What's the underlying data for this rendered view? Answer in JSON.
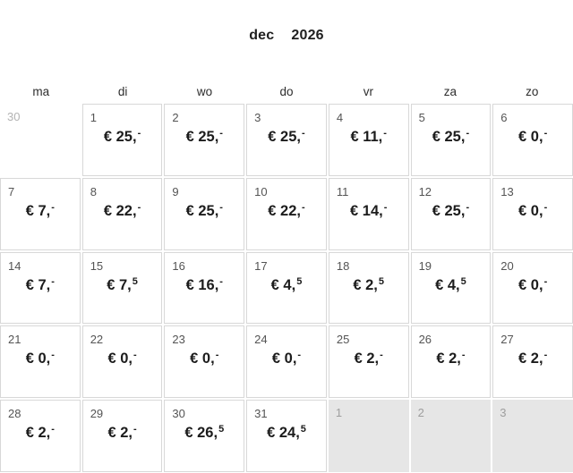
{
  "header": {
    "month": "dec",
    "year": "2026"
  },
  "weekday_labels": [
    "ma",
    "di",
    "wo",
    "do",
    "vr",
    "za",
    "zo"
  ],
  "colors": {
    "cell_border": "#d8d8d8",
    "next_month_cell_bg": "#e6e6e6",
    "price_text": "#1c1c1c",
    "day_number": "#545454",
    "prev_month_day_number": "#b3b3b3",
    "next_month_day_number": "#9e9e9e"
  },
  "weeks": [
    [
      {
        "day": "30",
        "variant": "prev-month"
      },
      {
        "day": "1",
        "price": {
          "main": "€ 25,",
          "sup": "-"
        }
      },
      {
        "day": "2",
        "price": {
          "main": "€ 25,",
          "sup": "-"
        }
      },
      {
        "day": "3",
        "price": {
          "main": "€ 25,",
          "sup": "-"
        }
      },
      {
        "day": "4",
        "price": {
          "main": "€ 11,",
          "sup": "-"
        }
      },
      {
        "day": "5",
        "price": {
          "main": "€ 25,",
          "sup": "-"
        }
      },
      {
        "day": "6",
        "price": {
          "main": "€ 0,",
          "sup": "-"
        }
      }
    ],
    [
      {
        "day": "7",
        "price": {
          "main": "€ 7,",
          "sup": "-"
        }
      },
      {
        "day": "8",
        "price": {
          "main": "€ 22,",
          "sup": "-"
        }
      },
      {
        "day": "9",
        "price": {
          "main": "€ 25,",
          "sup": "-"
        }
      },
      {
        "day": "10",
        "price": {
          "main": "€ 22,",
          "sup": "-"
        }
      },
      {
        "day": "11",
        "price": {
          "main": "€ 14,",
          "sup": "-"
        }
      },
      {
        "day": "12",
        "price": {
          "main": "€ 25,",
          "sup": "-"
        }
      },
      {
        "day": "13",
        "price": {
          "main": "€ 0,",
          "sup": "-"
        }
      }
    ],
    [
      {
        "day": "14",
        "price": {
          "main": "€ 7,",
          "sup": "-"
        }
      },
      {
        "day": "15",
        "price": {
          "main": "€ 7,",
          "sup": "5"
        }
      },
      {
        "day": "16",
        "price": {
          "main": "€ 16,",
          "sup": "-"
        }
      },
      {
        "day": "17",
        "price": {
          "main": "€ 4,",
          "sup": "5"
        }
      },
      {
        "day": "18",
        "price": {
          "main": "€ 2,",
          "sup": "5"
        }
      },
      {
        "day": "19",
        "price": {
          "main": "€ 4,",
          "sup": "5"
        }
      },
      {
        "day": "20",
        "price": {
          "main": "€ 0,",
          "sup": "-"
        }
      }
    ],
    [
      {
        "day": "21",
        "price": {
          "main": "€ 0,",
          "sup": "-"
        }
      },
      {
        "day": "22",
        "price": {
          "main": "€ 0,",
          "sup": "-"
        }
      },
      {
        "day": "23",
        "price": {
          "main": "€ 0,",
          "sup": "-"
        }
      },
      {
        "day": "24",
        "price": {
          "main": "€ 0,",
          "sup": "-"
        }
      },
      {
        "day": "25",
        "price": {
          "main": "€ 2,",
          "sup": "-"
        }
      },
      {
        "day": "26",
        "price": {
          "main": "€ 2,",
          "sup": "-"
        }
      },
      {
        "day": "27",
        "price": {
          "main": "€ 2,",
          "sup": "-"
        }
      }
    ],
    [
      {
        "day": "28",
        "price": {
          "main": "€ 2,",
          "sup": "-"
        }
      },
      {
        "day": "29",
        "price": {
          "main": "€ 2,",
          "sup": "-"
        }
      },
      {
        "day": "30",
        "price": {
          "main": "€ 26,",
          "sup": "5"
        }
      },
      {
        "day": "31",
        "price": {
          "main": "€ 24,",
          "sup": "5"
        }
      },
      {
        "day": "1",
        "variant": "next-month"
      },
      {
        "day": "2",
        "variant": "next-month"
      },
      {
        "day": "3",
        "variant": "next-month"
      }
    ]
  ]
}
